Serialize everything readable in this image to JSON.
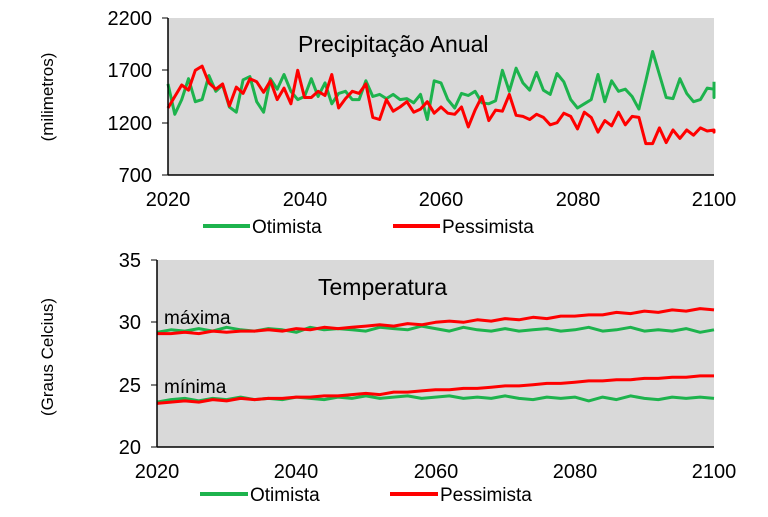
{
  "colors": {
    "otimista": "#1db34d",
    "pessimista": "#ff0000",
    "plot_bg": "#d9d9d9",
    "axis": "#000000"
  },
  "chart_data": [
    {
      "type": "line",
      "title": "Precipitação Anual",
      "ylabel": "(milimetros)",
      "xlabel": "",
      "xlim": [
        2020,
        2100
      ],
      "ylim": [
        700,
        2200
      ],
      "xticks": [
        "2020",
        "2040",
        "2060",
        "2080",
        "2100"
      ],
      "yticks": [
        "700",
        "1200",
        "1700",
        "2200"
      ],
      "grid": false,
      "legend": "bottom",
      "annotations": [],
      "series": [
        {
          "name": "Otimista",
          "x_start": 2020,
          "x_step": 1,
          "values": [
            1570,
            1280,
            1420,
            1620,
            1400,
            1420,
            1650,
            1500,
            1560,
            1350,
            1300,
            1610,
            1640,
            1400,
            1300,
            1620,
            1520,
            1660,
            1500,
            1420,
            1450,
            1620,
            1450,
            1580,
            1380,
            1480,
            1500,
            1420,
            1420,
            1600,
            1450,
            1470,
            1430,
            1470,
            1420,
            1430,
            1390,
            1470,
            1230,
            1600,
            1580,
            1420,
            1340,
            1480,
            1460,
            1500,
            1390,
            1380,
            1410,
            1700,
            1500,
            1720,
            1580,
            1510,
            1680,
            1510,
            1470,
            1670,
            1590,
            1420,
            1340,
            1380,
            1420,
            1660,
            1400,
            1600,
            1500,
            1520,
            1450,
            1330,
            1600,
            1880,
            1660,
            1440,
            1430,
            1620,
            1480,
            1400,
            1420,
            1530,
            1520,
            1440,
            1590
          ]
        },
        {
          "name": "Pessimista",
          "x_start": 2020,
          "x_step": 1,
          "values": [
            1340,
            1450,
            1560,
            1510,
            1700,
            1740,
            1580,
            1520,
            1570,
            1360,
            1540,
            1480,
            1620,
            1590,
            1490,
            1600,
            1420,
            1530,
            1380,
            1700,
            1440,
            1440,
            1500,
            1460,
            1660,
            1340,
            1430,
            1500,
            1480,
            1570,
            1250,
            1230,
            1420,
            1310,
            1350,
            1400,
            1300,
            1330,
            1400,
            1290,
            1350,
            1290,
            1280,
            1350,
            1160,
            1320,
            1450,
            1220,
            1320,
            1310,
            1470,
            1270,
            1260,
            1230,
            1280,
            1250,
            1180,
            1200,
            1290,
            1260,
            1140,
            1300,
            1250,
            1110,
            1220,
            1170,
            1300,
            1180,
            1260,
            1250,
            1000,
            1000,
            1150,
            1010,
            1130,
            1050,
            1130,
            1080,
            1150,
            1120,
            1130,
            1110,
            1130
          ]
        }
      ]
    },
    {
      "type": "line",
      "title": "Temperatura",
      "ylabel": "(Graus Celcius)",
      "xlabel": "",
      "xlim": [
        2020,
        2100
      ],
      "ylim": [
        20,
        35
      ],
      "xticks": [
        "2020",
        "2040",
        "2060",
        "2080",
        "2100"
      ],
      "yticks": [
        "20",
        "25",
        "30",
        "35"
      ],
      "grid": false,
      "legend": "bottom",
      "annotations": [
        {
          "text": "máxima",
          "x": 2021,
          "y": 30.1
        },
        {
          "text": "mínima",
          "x": 2021,
          "y": 24.7
        }
      ],
      "series": [
        {
          "name": "Otimista",
          "group": "máxima",
          "x_start": 2020,
          "x_step": 2,
          "values": [
            29.2,
            29.4,
            29.3,
            29.5,
            29.3,
            29.6,
            29.4,
            29.3,
            29.5,
            29.4,
            29.2,
            29.6,
            29.4,
            29.5,
            29.4,
            29.3,
            29.6,
            29.5,
            29.4,
            29.7,
            29.5,
            29.3,
            29.6,
            29.4,
            29.3,
            29.5,
            29.3,
            29.4,
            29.5,
            29.3,
            29.4,
            29.6,
            29.3,
            29.4,
            29.6,
            29.3,
            29.4,
            29.3,
            29.5,
            29.2,
            29.4
          ]
        },
        {
          "name": "Pessimista",
          "group": "máxima",
          "x_start": 2020,
          "x_step": 2,
          "values": [
            29.1,
            29.1,
            29.2,
            29.1,
            29.3,
            29.2,
            29.3,
            29.3,
            29.4,
            29.3,
            29.5,
            29.4,
            29.6,
            29.5,
            29.6,
            29.7,
            29.8,
            29.7,
            29.9,
            29.8,
            30.0,
            30.1,
            30.0,
            30.2,
            30.1,
            30.3,
            30.2,
            30.4,
            30.3,
            30.5,
            30.5,
            30.6,
            30.6,
            30.8,
            30.7,
            30.9,
            30.8,
            31.0,
            30.9,
            31.1,
            31.0
          ]
        },
        {
          "name": "Otimista",
          "group": "mínima",
          "x_start": 2020,
          "x_step": 2,
          "values": [
            23.6,
            23.8,
            23.9,
            23.7,
            23.9,
            23.8,
            24.0,
            23.8,
            23.9,
            23.8,
            24.0,
            23.9,
            23.8,
            24.0,
            23.9,
            24.1,
            23.9,
            24.0,
            24.1,
            23.9,
            24.0,
            24.1,
            23.9,
            24.0,
            23.9,
            24.1,
            23.9,
            23.8,
            24.0,
            23.9,
            24.0,
            23.7,
            24.0,
            23.8,
            24.1,
            23.9,
            23.8,
            24.0,
            23.9,
            24.0,
            23.9
          ]
        },
        {
          "name": "Pessimista",
          "group": "mínima",
          "x_start": 2020,
          "x_step": 2,
          "values": [
            23.5,
            23.6,
            23.7,
            23.6,
            23.8,
            23.7,
            23.9,
            23.8,
            23.9,
            23.9,
            24.0,
            24.0,
            24.1,
            24.1,
            24.2,
            24.3,
            24.2,
            24.4,
            24.4,
            24.5,
            24.6,
            24.6,
            24.7,
            24.7,
            24.8,
            24.9,
            24.9,
            25.0,
            25.1,
            25.1,
            25.2,
            25.3,
            25.3,
            25.4,
            25.4,
            25.5,
            25.5,
            25.6,
            25.6,
            25.7,
            25.7
          ]
        }
      ]
    }
  ]
}
